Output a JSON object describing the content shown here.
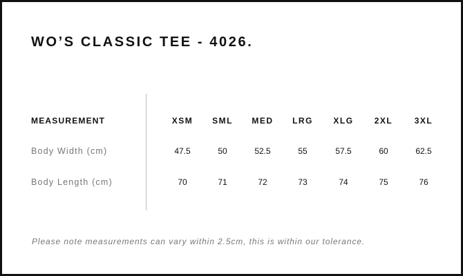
{
  "title": "WO’S CLASSIC TEE - 4026.",
  "table": {
    "header_label": "MEASUREMENT",
    "sizes": [
      "XSM",
      "SML",
      "MED",
      "LRG",
      "XLG",
      "2XL",
      "3XL"
    ],
    "rows": [
      {
        "label": "Body Width (cm)",
        "values": [
          "47.5",
          "50",
          "52.5",
          "55",
          "57.5",
          "60",
          "62.5"
        ]
      },
      {
        "label": "Body Length (cm)",
        "values": [
          "70",
          "71",
          "72",
          "73",
          "74",
          "75",
          "76"
        ]
      }
    ]
  },
  "note": "Please note measurements can vary within 2.5cm, this is within our tolerance."
}
